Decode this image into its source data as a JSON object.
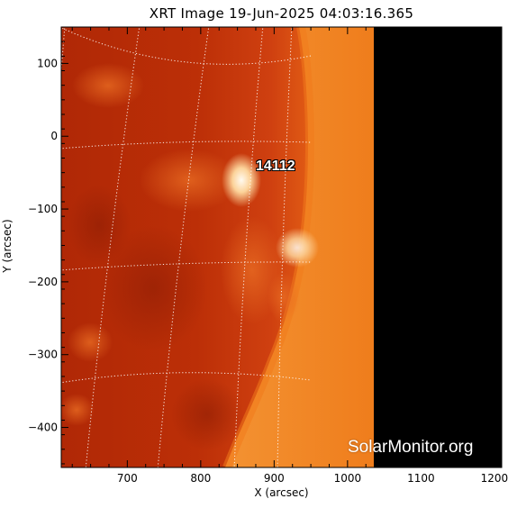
{
  "title": "XRT Image 19-Jun-2025 04:03:16.365",
  "xlabel": "X (arcsec)",
  "ylabel": "Y (arcsec)",
  "watermark": "SolarMonitor.org",
  "region_label": "14112",
  "axes": {
    "xlim": [
      610,
      1210
    ],
    "ylim": [
      -455,
      150
    ],
    "x_ticks": [
      700,
      800,
      900,
      1000,
      1100,
      1200
    ],
    "y_ticks": [
      100,
      0,
      -100,
      -200,
      -300,
      -400
    ]
  },
  "colors": {
    "disk_dark": "#b52a06",
    "disk_mid": "#d44b0f",
    "limb_bright": "#f3801a",
    "corona_bright": "#fbb66a",
    "off_image": "#000000",
    "grid": "#ffffff"
  }
}
